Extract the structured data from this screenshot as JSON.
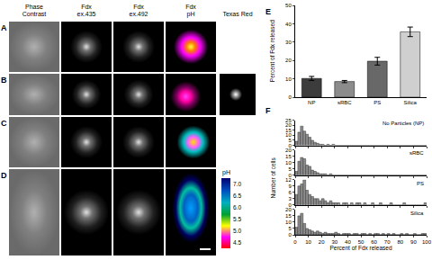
{
  "image_panel": {
    "columns": [
      [
        "Phase",
        "Contrast"
      ],
      [
        "Fdx",
        "ex.435"
      ],
      [
        "Fdx",
        "ex.492"
      ],
      [
        "Fdx",
        "pH"
      ],
      [
        "Texas Red"
      ]
    ],
    "rows": [
      "A",
      "B",
      "C",
      "D"
    ],
    "colorbar": {
      "title": "pH",
      "range": [
        4.25,
        7.25
      ],
      "ticks": [
        {
          "value": 7,
          "label": "7.0"
        },
        {
          "value": 6.5,
          "label": "6.5"
        },
        {
          "value": 6,
          "label": "6.0"
        },
        {
          "value": 5.5,
          "label": "5.5"
        },
        {
          "value": 5,
          "label": "5.0"
        },
        {
          "value": 4.5,
          "label": "4.5"
        }
      ]
    }
  },
  "chart_data": [
    {
      "type": "bar",
      "title": "E",
      "ylabel": "Percent of Fdx released",
      "categories": [
        "NP",
        "sRBC",
        "PS",
        "Silica"
      ],
      "values": [
        10.2,
        8.5,
        19.6,
        35.6
      ],
      "errors": [
        1.1,
        0.6,
        2.1,
        2.6
      ],
      "colors": [
        "#3c3c3c",
        "#8c8c8c",
        "#686868",
        "#cfcfcf"
      ],
      "ylim": [
        0,
        50
      ],
      "yticks": [
        0,
        10,
        20,
        30,
        40,
        50
      ],
      "grid": false
    },
    {
      "type": "histogram",
      "title": "F",
      "ylabel": "Number of cells",
      "annotations": [
        "No Particles (NP)"
      ],
      "bins": [
        0,
        2,
        4,
        6,
        8,
        10,
        12,
        14,
        16,
        18,
        20,
        22,
        24,
        26,
        28,
        30,
        32,
        34,
        36,
        38,
        40,
        42,
        44,
        46,
        48,
        50,
        52,
        54,
        56,
        58,
        60,
        62,
        64,
        66,
        68,
        70,
        72,
        74,
        76,
        78,
        80,
        82,
        84,
        86,
        88,
        90,
        92,
        94,
        96,
        98,
        100
      ],
      "values": [
        4,
        13,
        19,
        14,
        11,
        8,
        5,
        3,
        2,
        1,
        1,
        0,
        1,
        0,
        1,
        0,
        0,
        0,
        0,
        0,
        0,
        0,
        0,
        0,
        0,
        0,
        0,
        0,
        0,
        0,
        0,
        0,
        0,
        0,
        0,
        0,
        0,
        0,
        0,
        0,
        0,
        0,
        0,
        0,
        0,
        0,
        0,
        0,
        0,
        0
      ],
      "color": "#8c8c8c",
      "xlim": [
        0,
        100
      ],
      "xticks": [
        0,
        10,
        20,
        30,
        40,
        50,
        60,
        70,
        80,
        90,
        100
      ],
      "ylim": [
        0,
        25
      ],
      "yticks": [
        0,
        5,
        10,
        15,
        20,
        25
      ],
      "tick_labels": "y",
      "grid": false
    },
    {
      "type": "histogram",
      "annotations": [
        "sRBC"
      ],
      "bins": [
        0,
        2,
        4,
        6,
        8,
        10,
        12,
        14,
        16,
        18,
        20,
        22,
        24,
        26,
        28,
        30,
        32,
        34,
        36,
        38,
        40,
        42,
        44,
        46,
        48,
        50,
        52,
        54,
        56,
        58,
        60,
        62,
        64,
        66,
        68,
        70,
        72,
        74,
        76,
        78,
        80,
        82,
        84,
        86,
        88,
        90,
        92,
        94,
        96,
        98,
        100
      ],
      "values": [
        3,
        11,
        14,
        13,
        8,
        7,
        4,
        3,
        2,
        1,
        1,
        1,
        0,
        1,
        0,
        0,
        0,
        0,
        0,
        0,
        0,
        0,
        0,
        0,
        0,
        0,
        0,
        0,
        0,
        0,
        0,
        0,
        0,
        0,
        0,
        0,
        0,
        0,
        0,
        0,
        0,
        0,
        0,
        0,
        0,
        0,
        0,
        0,
        0,
        0
      ],
      "color": "#8c8c8c",
      "xlim": [
        0,
        100
      ],
      "xticks": [
        0,
        10,
        20,
        30,
        40,
        50,
        60,
        70,
        80,
        90,
        100
      ],
      "ylim": [
        0,
        20
      ],
      "yticks": [
        0,
        5,
        10,
        15,
        20
      ],
      "tick_labels": "y",
      "grid": false
    },
    {
      "type": "histogram",
      "annotations": [
        "PS"
      ],
      "bins": [
        0,
        2,
        4,
        6,
        8,
        10,
        12,
        14,
        16,
        18,
        20,
        22,
        24,
        26,
        28,
        30,
        32,
        34,
        36,
        38,
        40,
        42,
        44,
        46,
        48,
        50,
        52,
        54,
        56,
        58,
        60,
        62,
        64,
        66,
        68,
        70,
        72,
        74,
        76,
        78,
        80,
        82,
        84,
        86,
        88,
        90,
        92,
        94,
        96,
        98,
        100
      ],
      "values": [
        5,
        9,
        10,
        12,
        7,
        5,
        4,
        3,
        3,
        2,
        3,
        2,
        1,
        2,
        1,
        1,
        1,
        0,
        1,
        1,
        0,
        1,
        0,
        1,
        1,
        0,
        1,
        0,
        0,
        1,
        0,
        0,
        1,
        0,
        0,
        0,
        1,
        0,
        0,
        0,
        0,
        1,
        0,
        0,
        0,
        0,
        0,
        0,
        0,
        1
      ],
      "color": "#8c8c8c",
      "xlim": [
        0,
        100
      ],
      "xticks": [
        0,
        10,
        20,
        30,
        40,
        50,
        60,
        70,
        80,
        90,
        100
      ],
      "ylim": [
        0,
        12
      ],
      "yticks": [
        0,
        3,
        6,
        9,
        12
      ],
      "tick_labels": "y",
      "grid": false
    },
    {
      "type": "histogram",
      "annotations": [
        "Silica"
      ],
      "xlabel": "Percent of Fdx released",
      "bins": [
        0,
        2,
        4,
        6,
        8,
        10,
        12,
        14,
        16,
        18,
        20,
        22,
        24,
        26,
        28,
        30,
        32,
        34,
        36,
        38,
        40,
        42,
        44,
        46,
        48,
        50,
        52,
        54,
        56,
        58,
        60,
        62,
        64,
        66,
        68,
        70,
        72,
        74,
        76,
        78,
        80,
        82,
        84,
        86,
        88,
        90,
        92,
        94,
        96,
        98,
        100
      ],
      "values": [
        6,
        15,
        17,
        9,
        5,
        4,
        3,
        2,
        3,
        2,
        1,
        2,
        1,
        1,
        1,
        2,
        1,
        0,
        1,
        1,
        1,
        0,
        1,
        1,
        0,
        1,
        1,
        0,
        1,
        0,
        1,
        1,
        0,
        1,
        0,
        1,
        0,
        1,
        0,
        0,
        1,
        0,
        1,
        0,
        0,
        1,
        0,
        0,
        1,
        1
      ],
      "color": "#8c8c8c",
      "xlim": [
        0,
        100
      ],
      "xticks": [
        0,
        10,
        20,
        30,
        40,
        50,
        60,
        70,
        80,
        90,
        100
      ],
      "ylim": [
        0,
        20
      ],
      "yticks": [
        0,
        5,
        10,
        15,
        20
      ],
      "grid": false
    }
  ]
}
